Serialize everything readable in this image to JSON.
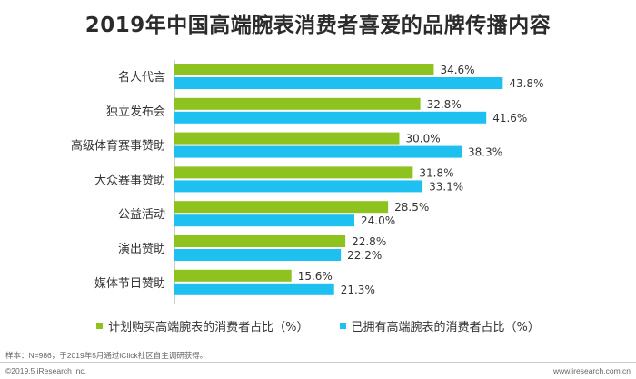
{
  "title": "2019年中国高端腕表消费者喜爱的品牌传播内容",
  "chart_data": {
    "type": "bar",
    "orientation": "horizontal",
    "categories": [
      "名人代言",
      "独立发布会",
      "高级体育赛事赞助",
      "大众赛事赞助",
      "公益活动",
      "演出赞助",
      "媒体节目赞助"
    ],
    "series": [
      {
        "name": "计划购买高端腕表的消费者占比（%）",
        "color": "#8dc21f",
        "values": [
          34.6,
          32.8,
          30.0,
          31.8,
          28.5,
          22.8,
          15.6
        ],
        "labels": [
          "34.6%",
          "32.8%",
          "30.0%",
          "31.8%",
          "28.5%",
          "22.8%",
          "15.6%"
        ]
      },
      {
        "name": "已拥有高端腕表的消费者占比（%）",
        "color": "#1ec0f0",
        "values": [
          43.8,
          41.6,
          38.3,
          33.1,
          24.0,
          22.2,
          21.3
        ],
        "labels": [
          "43.8%",
          "41.6%",
          "38.3%",
          "33.1%",
          "24.0%",
          "22.2%",
          "21.3%"
        ]
      }
    ],
    "xlim": [
      0,
      50
    ],
    "grid": false,
    "legend_position": "bottom"
  },
  "footnote": "样本：N=986，于2019年5月通过iClick社区自主调研获得。",
  "footer": {
    "copyright": "©2019.5 iResearch Inc.",
    "website": "www.iresearch.com.cn"
  }
}
